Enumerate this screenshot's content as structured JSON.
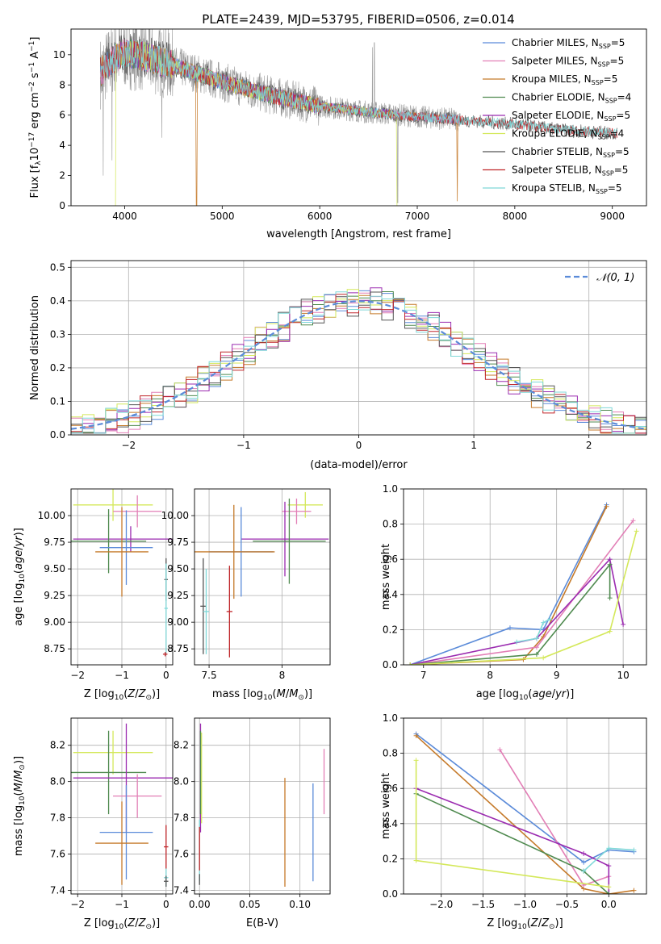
{
  "figure": {
    "title": "PLATE=2439, MJD=53795, FIBERID=0506, z=0.014"
  },
  "colors": {
    "Chabrier MILES": "#5b8bd9",
    "Salpeter MILES": "#e27fb6",
    "Kroupa MILES": "#c57a2a",
    "Chabrier ELODIE": "#4f8a4f",
    "Salpeter ELODIE": "#9b2bb0",
    "Kroupa ELODIE": "#d4e85a",
    "Chabrier STELIB": "#555555",
    "Salpeter STELIB": "#c0262a",
    "Kroupa STELIB": "#7fd8d8",
    "data": "#9a9a9a",
    "normal": "#5b8bd9"
  },
  "chart_data": [
    {
      "id": "spectrum",
      "type": "line",
      "xlabel": "wavelength [Angstrom, rest frame]",
      "ylabel": "Flux [f_λ 10^-17 erg cm^-2 s^-1 A^-1]",
      "xlim": [
        3450,
        9350
      ],
      "ylim": [
        0,
        11.7
      ],
      "xticks": [
        4000,
        5000,
        6000,
        7000,
        8000,
        9000
      ],
      "yticks": [
        0,
        2,
        4,
        6,
        8,
        10
      ],
      "grid": false,
      "legend_position": "top-right",
      "legend": [
        {
          "name": "Chabrier MILES",
          "nssp": "5"
        },
        {
          "name": "Salpeter MILES",
          "nssp": "5"
        },
        {
          "name": "Kroupa MILES",
          "nssp": "5"
        },
        {
          "name": "Chabrier ELODIE",
          "nssp": "4"
        },
        {
          "name": "Salpeter ELODIE",
          "nssp": "5"
        },
        {
          "name": "Kroupa ELODIE",
          "nssp": "4"
        },
        {
          "name": "Chabrier STELIB",
          "nssp": "5"
        },
        {
          "name": "Salpeter STELIB",
          "nssp": "5"
        },
        {
          "name": "Kroupa STELIB",
          "nssp": "5"
        }
      ],
      "continuum": [
        [
          3750,
          8.8
        ],
        [
          3850,
          9.6
        ],
        [
          4000,
          10.1
        ],
        [
          4200,
          9.9
        ],
        [
          4500,
          9.3
        ],
        [
          5000,
          8.2
        ],
        [
          5500,
          7.3
        ],
        [
          6000,
          6.6
        ],
        [
          6500,
          6.2
        ],
        [
          7000,
          5.9
        ],
        [
          7400,
          5.7
        ],
        [
          8000,
          5.4
        ],
        [
          8500,
          5.0
        ],
        [
          9050,
          4.8
        ]
      ],
      "data_range": [
        3750,
        7420
      ],
      "model_ranges": {
        "MILES": [
          3750,
          7430
        ],
        "ELODIE": [
          3900,
          6800
        ],
        "STELIB": [
          3750,
          9050
        ]
      }
    },
    {
      "id": "residuals",
      "type": "histogram",
      "xlabel": "(data-model)/error",
      "ylabel": "Normed distribution",
      "xlim": [
        -2.5,
        2.5
      ],
      "ylim": [
        0,
        0.52
      ],
      "xticks": [
        -2,
        -1,
        0,
        1,
        2
      ],
      "yticks": [
        0.0,
        0.1,
        0.2,
        0.3,
        0.4,
        0.5
      ],
      "grid": true,
      "legend_position": "top-right",
      "legend_label": "N(0,1)",
      "bin_width": 0.1
    },
    {
      "id": "age_vs_Z",
      "type": "errorbar",
      "xlabel": "Z [log10(Z/Z☉)]",
      "ylabel": "age [log10(age/yr)]",
      "xlim": [
        -2.15,
        0.15
      ],
      "ylim": [
        8.6,
        10.25
      ],
      "xticks": [
        -2,
        -1,
        0
      ],
      "yticks": [
        8.75,
        9.0,
        9.25,
        9.5,
        9.75,
        10.0
      ],
      "grid": true,
      "points": [
        {
          "series": "Kroupa ELODIE",
          "x": -1.2,
          "xerr": 0.9,
          "y": 10.1,
          "yerr": 0.15
        },
        {
          "series": "Salpeter MILES",
          "x": -0.65,
          "xerr": 0.55,
          "y": 10.04,
          "yerr": 0.15
        },
        {
          "series": "Salpeter ELODIE",
          "x": -0.8,
          "xerr": 1.3,
          "y": 9.78,
          "yerr": 0.12
        },
        {
          "series": "Chabrier ELODIE",
          "x": -1.3,
          "xerr": 0.85,
          "y": 9.76,
          "yerr": 0.3
        },
        {
          "series": "Chabrier MILES",
          "x": -0.9,
          "xerr": 0.6,
          "y": 9.7,
          "yerr": 0.35
        },
        {
          "series": "Kroupa MILES",
          "x": -1.0,
          "xerr": 0.6,
          "y": 9.66,
          "yerr": 0.42
        },
        {
          "series": "Chabrier STELIB",
          "x": 0.0,
          "xerr": 0.04,
          "y": 9.4,
          "yerr": 0.2
        },
        {
          "series": "Kroupa STELIB",
          "x": 0.0,
          "xerr": 0.04,
          "y": 9.13,
          "yerr": 0.42
        },
        {
          "series": "Salpeter STELIB",
          "x": -0.02,
          "xerr": 0.05,
          "y": 8.7,
          "yerr": 0.02
        }
      ]
    },
    {
      "id": "age_vs_mass",
      "type": "errorbar",
      "xlabel": "mass [log10(M/M☉)]",
      "ylabel": "",
      "xlim": [
        7.4,
        8.33
      ],
      "ylim": [
        8.6,
        10.25
      ],
      "xticks": [
        7.5,
        8.0
      ],
      "yticks": [
        8.75,
        9.0,
        9.25,
        9.5,
        9.75,
        10.0
      ],
      "grid": true,
      "points": [
        {
          "series": "Kroupa ELODIE",
          "x": 8.16,
          "xerr": 0.12,
          "y": 10.1,
          "yerr": 0.12
        },
        {
          "series": "Salpeter MILES",
          "x": 8.1,
          "xerr": 0.1,
          "y": 10.04,
          "yerr": 0.12
        },
        {
          "series": "Salpeter ELODIE",
          "x": 8.02,
          "xerr": 0.3,
          "y": 9.78,
          "yerr": 0.35
        },
        {
          "series": "Chabrier ELODIE",
          "x": 8.05,
          "xerr": 0.25,
          "y": 9.76,
          "yerr": 0.4
        },
        {
          "series": "Chabrier MILES",
          "x": 7.72,
          "xerr": 0.22,
          "y": 9.66,
          "yerr": 0.42
        },
        {
          "series": "Kroupa MILES",
          "x": 7.67,
          "xerr": 0.28,
          "y": 9.66,
          "yerr": 0.44
        },
        {
          "series": "Chabrier STELIB",
          "x": 7.46,
          "xerr": 0.02,
          "y": 9.15,
          "yerr": 0.45
        },
        {
          "series": "Kroupa STELIB",
          "x": 7.48,
          "xerr": 0.02,
          "y": 9.1,
          "yerr": 0.4
        },
        {
          "series": "Salpeter STELIB",
          "x": 7.64,
          "xerr": 0.02,
          "y": 9.1,
          "yerr": 0.43
        }
      ]
    },
    {
      "id": "mass_weight_vs_age",
      "type": "line",
      "xlabel": "age [log10(age/yr)]",
      "ylabel": "mass weight",
      "xlim": [
        6.7,
        10.35
      ],
      "ylim": [
        0,
        1.0
      ],
      "xticks": [
        7,
        8,
        9,
        10
      ],
      "yticks": [
        0.0,
        0.2,
        0.4,
        0.6,
        0.8,
        1.0
      ],
      "grid": true,
      "series": [
        {
          "name": "Chabrier MILES",
          "x": [
            6.8,
            8.3,
            8.8,
            9.75
          ],
          "y": [
            0.0,
            0.21,
            0.2,
            0.91
          ]
        },
        {
          "name": "Kroupa MILES",
          "x": [
            6.8,
            8.5,
            8.8,
            9.75
          ],
          "y": [
            0.0,
            0.03,
            0.16,
            0.9
          ]
        },
        {
          "name": "Salpeter MILES",
          "x": [
            6.8,
            8.7,
            10.15
          ],
          "y": [
            0.0,
            0.1,
            0.82
          ]
        },
        {
          "name": "Salpeter ELODIE",
          "x": [
            6.8,
            8.7,
            9.8,
            10.0
          ],
          "y": [
            0.0,
            0.15,
            0.6,
            0.23
          ]
        },
        {
          "name": "Chabrier ELODIE",
          "x": [
            6.8,
            8.7,
            9.8,
            9.8
          ],
          "y": [
            0.0,
            0.06,
            0.57,
            0.38
          ]
        },
        {
          "name": "Kroupa ELODIE",
          "x": [
            6.8,
            8.8,
            9.8,
            10.2
          ],
          "y": [
            0.0,
            0.04,
            0.19,
            0.76
          ]
        },
        {
          "name": "Kroupa STELIB",
          "x": [
            8.4,
            8.7,
            8.8,
            8.9
          ],
          "y": [
            0.13,
            0.15,
            0.24,
            0.26
          ]
        }
      ]
    },
    {
      "id": "mass_vs_Z",
      "type": "errorbar",
      "xlabel": "Z [log10(Z/Z☉)]",
      "ylabel": "mass [log10(M/M☉)]",
      "xlim": [
        -2.15,
        0.15
      ],
      "ylim": [
        7.38,
        8.35
      ],
      "xticks": [
        -2,
        -1,
        0
      ],
      "yticks": [
        7.4,
        7.6,
        7.8,
        8.0,
        8.2
      ],
      "grid": true,
      "points": [
        {
          "series": "Kroupa ELODIE",
          "x": -1.2,
          "xerr": 0.9,
          "y": 8.16,
          "yerr": 0.12
        },
        {
          "series": "Chabrier ELODIE",
          "x": -1.3,
          "xerr": 0.85,
          "y": 8.05,
          "yerr": 0.23
        },
        {
          "series": "Salpeter ELODIE",
          "x": -0.9,
          "xerr": 1.2,
          "y": 8.02,
          "yerr": 0.3
        },
        {
          "series": "Salpeter MILES",
          "x": -0.65,
          "xerr": 0.55,
          "y": 7.92,
          "yerr": 0.12
        },
        {
          "series": "Chabrier MILES",
          "x": -0.9,
          "xerr": 0.6,
          "y": 7.72,
          "yerr": 0.26
        },
        {
          "series": "Kroupa MILES",
          "x": -1.0,
          "xerr": 0.6,
          "y": 7.66,
          "yerr": 0.23
        },
        {
          "series": "Salpeter STELIB",
          "x": 0.0,
          "xerr": 0.05,
          "y": 7.64,
          "yerr": 0.12
        },
        {
          "series": "Kroupa STELIB",
          "x": 0.0,
          "xerr": 0.05,
          "y": 7.47,
          "yerr": 0.05
        },
        {
          "series": "Chabrier STELIB",
          "x": 0.0,
          "xerr": 0.05,
          "y": 7.45,
          "yerr": 0.03
        }
      ]
    },
    {
      "id": "mass_vs_EBV",
      "type": "errorbar",
      "xlabel": "E(B-V)",
      "ylabel": "",
      "xlim": [
        -0.005,
        0.13
      ],
      "ylim": [
        7.38,
        8.35
      ],
      "xticks": [
        0.0,
        0.05,
        0.1
      ],
      "xticklabels": [
        "0.00",
        "0.05",
        "0.10"
      ],
      "yticks": [
        7.4,
        7.6,
        7.8,
        8.0,
        8.2
      ],
      "grid": true,
      "points": [
        {
          "series": "Salpeter ELODIE",
          "x": 0.001,
          "y": 8.02,
          "yerr": 0.3
        },
        {
          "series": "Kroupa ELODIE",
          "x": 0.002,
          "y": 8.02,
          "yerr": 0.25
        },
        {
          "series": "Chabrier ELODIE",
          "x": 0.001,
          "y": 8.05,
          "yerr": 0.23
        },
        {
          "series": "Kroupa STELIB",
          "x": 0.0,
          "y": 7.62,
          "yerr": 0.17
        },
        {
          "series": "Salpeter STELIB",
          "x": 0.0,
          "y": 7.63,
          "yerr": 0.12
        },
        {
          "series": "Chabrier STELIB",
          "x": 0.0,
          "y": 7.46,
          "yerr": 0.03
        },
        {
          "series": "Kroupa MILES",
          "x": 0.085,
          "y": 7.72,
          "yerr": 0.3
        },
        {
          "series": "Chabrier MILES",
          "x": 0.113,
          "y": 7.72,
          "yerr": 0.27
        },
        {
          "series": "Salpeter MILES",
          "x": 0.124,
          "y": 8.0,
          "yerr": 0.18
        }
      ]
    },
    {
      "id": "mass_weight_vs_Z",
      "type": "line",
      "xlabel": "Z [log10(Z/Z☉)]",
      "ylabel": "mass weight",
      "xlim": [
        -2.45,
        0.45
      ],
      "ylim": [
        0,
        1.0
      ],
      "xticks": [
        -2.0,
        -1.5,
        -1.0,
        -0.5,
        0.0
      ],
      "xticklabels": [
        "−2.0",
        "−1.5",
        "−1.0",
        "−0.5",
        "0.0"
      ],
      "yticks": [
        0.0,
        0.2,
        0.4,
        0.6,
        0.8,
        1.0
      ],
      "grid": true,
      "series": [
        {
          "name": "Chabrier MILES",
          "x": [
            -2.3,
            -0.3,
            0.0,
            0.3
          ],
          "y": [
            0.91,
            0.18,
            0.25,
            0.24
          ]
        },
        {
          "name": "Kroupa MILES",
          "x": [
            -2.3,
            -0.3,
            0.0,
            0.3
          ],
          "y": [
            0.9,
            0.03,
            0.0,
            0.02
          ]
        },
        {
          "name": "Salpeter MILES",
          "x": [
            -1.3,
            -0.3,
            0.0
          ],
          "y": [
            0.82,
            0.05,
            0.1
          ]
        },
        {
          "name": "Salpeter ELODIE",
          "x": [
            -2.3,
            -0.3,
            0.0,
            0.0
          ],
          "y": [
            0.6,
            0.23,
            0.16,
            0.0
          ]
        },
        {
          "name": "Chabrier ELODIE",
          "x": [
            -2.3,
            -0.3,
            0.0
          ],
          "y": [
            0.57,
            0.13,
            0.0
          ]
        },
        {
          "name": "Kroupa ELODIE",
          "x": [
            -2.3,
            -2.3,
            0.0
          ],
          "y": [
            0.76,
            0.19,
            0.04
          ]
        },
        {
          "name": "Kroupa STELIB",
          "x": [
            -0.3,
            0.0,
            0.3
          ],
          "y": [
            0.13,
            0.26,
            0.25
          ]
        }
      ]
    }
  ]
}
